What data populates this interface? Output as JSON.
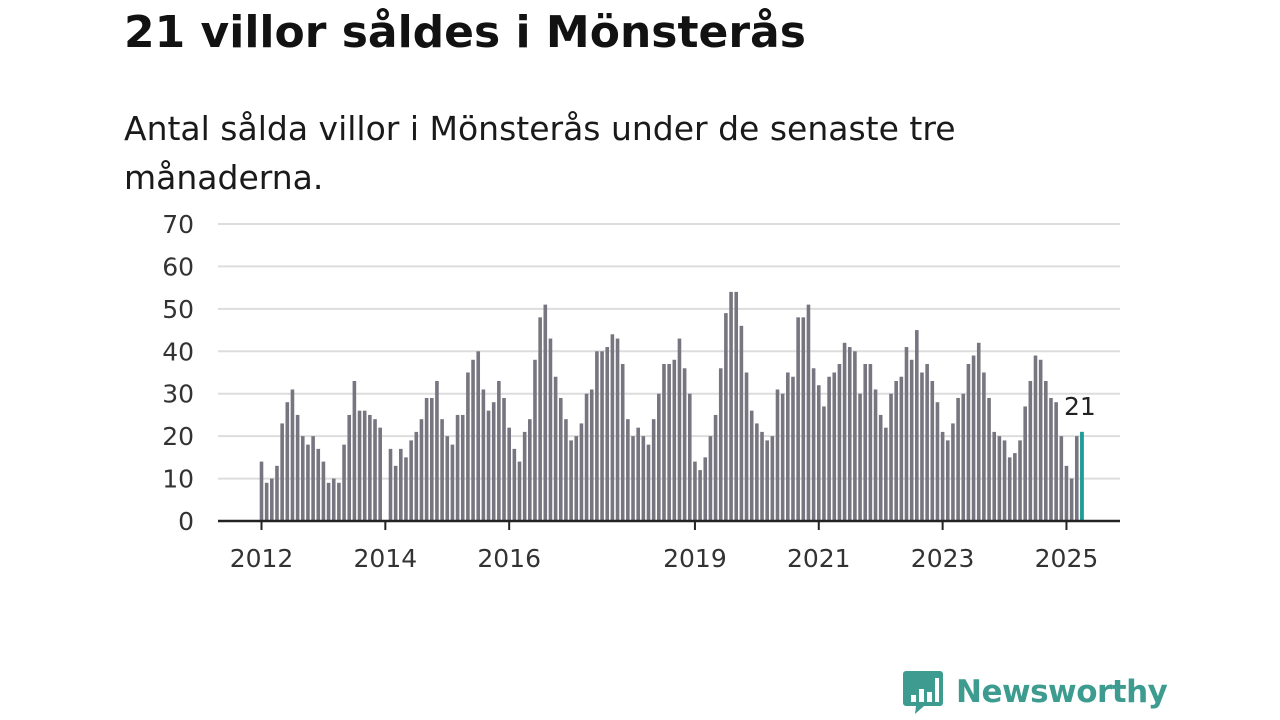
{
  "title": "21 villor såldes i Mönsterås",
  "subtitle": "Antal sålda villor i Mönsterås under de senaste tre månaderna.",
  "colors": {
    "bar": "#777680",
    "highlight": "#1a9e99",
    "grid": "#dddddd",
    "axis": "#222222",
    "brand": "#3d9c8f"
  },
  "logo": {
    "text": "Newsworthy",
    "icon": "chart-speech-bubble-icon"
  },
  "chart_data": {
    "type": "bar",
    "ylim": [
      0,
      70
    ],
    "yticks": [
      0,
      10,
      20,
      30,
      40,
      50,
      60,
      70
    ],
    "grid": true,
    "xlabel": "",
    "ylabel": "",
    "x_start": "2012-01",
    "xticks": [
      {
        "label": "2012",
        "date": "2012-01"
      },
      {
        "label": "2014",
        "date": "2014-01"
      },
      {
        "label": "2016",
        "date": "2016-01"
      },
      {
        "label": "2019",
        "date": "2019-01"
      },
      {
        "label": "2021",
        "date": "2021-01"
      },
      {
        "label": "2023",
        "date": "2023-01"
      },
      {
        "label": "2025",
        "date": "2025-01"
      }
    ],
    "values": [
      14,
      9,
      10,
      13,
      23,
      28,
      31,
      25,
      20,
      18,
      20,
      17,
      14,
      9,
      10,
      9,
      18,
      25,
      33,
      26,
      26,
      25,
      24,
      22,
      0,
      17,
      13,
      17,
      15,
      19,
      21,
      24,
      29,
      29,
      33,
      24,
      20,
      18,
      25,
      25,
      35,
      38,
      40,
      31,
      26,
      28,
      33,
      29,
      22,
      17,
      14,
      21,
      24,
      38,
      48,
      51,
      43,
      34,
      29,
      24,
      19,
      20,
      23,
      30,
      31,
      40,
      40,
      41,
      44,
      43,
      37,
      24,
      20,
      22,
      20,
      18,
      24,
      30,
      37,
      37,
      38,
      43,
      36,
      30,
      14,
      12,
      15,
      20,
      25,
      36,
      49,
      54,
      54,
      46,
      35,
      26,
      23,
      21,
      19,
      20,
      31,
      30,
      35,
      34,
      48,
      48,
      51,
      36,
      32,
      27,
      34,
      35,
      37,
      42,
      41,
      40,
      30,
      37,
      37,
      31,
      25,
      22,
      30,
      33,
      34,
      41,
      38,
      45,
      35,
      37,
      33,
      28,
      21,
      19,
      23,
      29,
      30,
      37,
      39,
      42,
      35,
      29,
      21,
      20,
      19,
      15,
      16,
      19,
      27,
      33,
      39,
      38,
      33,
      29,
      28,
      20,
      13,
      10,
      20,
      21
    ],
    "highlight": {
      "date": "2025-04",
      "value": 21,
      "label": "21"
    }
  }
}
